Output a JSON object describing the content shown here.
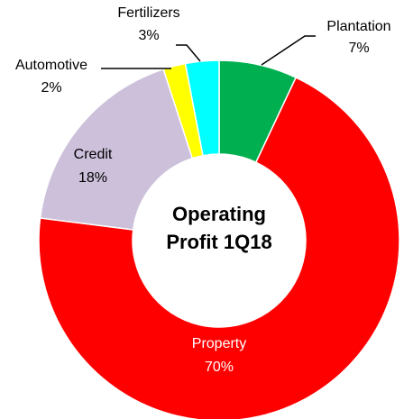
{
  "chart_data": {
    "type": "donut",
    "title": "Operating Profit 1Q18",
    "categories": [
      "Plantation",
      "Property",
      "Credit",
      "Automotive",
      "Fertilizers"
    ],
    "values": [
      7,
      70,
      18,
      2,
      3
    ],
    "value_labels": [
      "7%",
      "70%",
      "18%",
      "2%",
      "3%"
    ],
    "colors": [
      "#00b050",
      "#ff0000",
      "#ccc0da",
      "#ffff00",
      "#00ffff"
    ]
  }
}
